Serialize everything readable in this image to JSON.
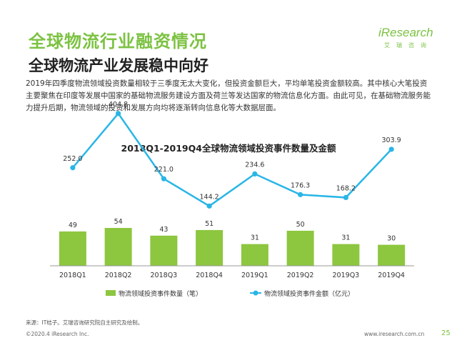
{
  "page": {
    "title": "全球物流行业融资情况",
    "subtitle": "全球物流产业发展稳中向好",
    "body": "2019年四季度物流领域投资数量相较于三季度无太大变化，但投资金额巨大，平均单笔投资金额较高。其中核心大笔投资主要聚焦在印度等发展中国家的基础物流服务建设方面及荷兰等发达国家的物流信息化方面。由此可见，在基础物流服务能力提升后期，物流领域的投资和发展方向均将逐渐转向信息化等大数据层面。",
    "source": "来源：IT桔子。艾瑞咨询研究院自主研究及绘制。",
    "footer_left": "©2020.4 iResearch Inc.",
    "footer_right": "www.iresearch.com.cn",
    "page_number": "25"
  },
  "logo": {
    "main": "iResearch",
    "sub": "艾瑞咨询"
  },
  "colors": {
    "green": "#8dc63f",
    "blue": "#29b6e6",
    "title_green": "#7cc242"
  },
  "chart_data": {
    "type": "bar",
    "title": "2018Q1-2019Q4全球物流领域投资事件数量及金额",
    "categories": [
      "2018Q1",
      "2018Q2",
      "2018Q3",
      "2018Q4",
      "2019Q1",
      "2019Q2",
      "2019Q3",
      "2019Q4"
    ],
    "series": [
      {
        "name": "物流领域投资事件数量（笔）",
        "type": "bar",
        "values": [
          49,
          54,
          43,
          51,
          31,
          50,
          31,
          30
        ]
      },
      {
        "name": "物流领域投资事件金额（亿元）",
        "type": "line",
        "values": [
          252.0,
          404.8,
          221.0,
          144.2,
          234.6,
          176.3,
          168.2,
          303.9
        ]
      }
    ],
    "line_labels": [
      "252.0",
      "404.8",
      "221.0",
      "144.2",
      "234.6",
      "176.3",
      "168.2",
      "303.9"
    ],
    "legend_position": "bottom",
    "grid": false
  }
}
